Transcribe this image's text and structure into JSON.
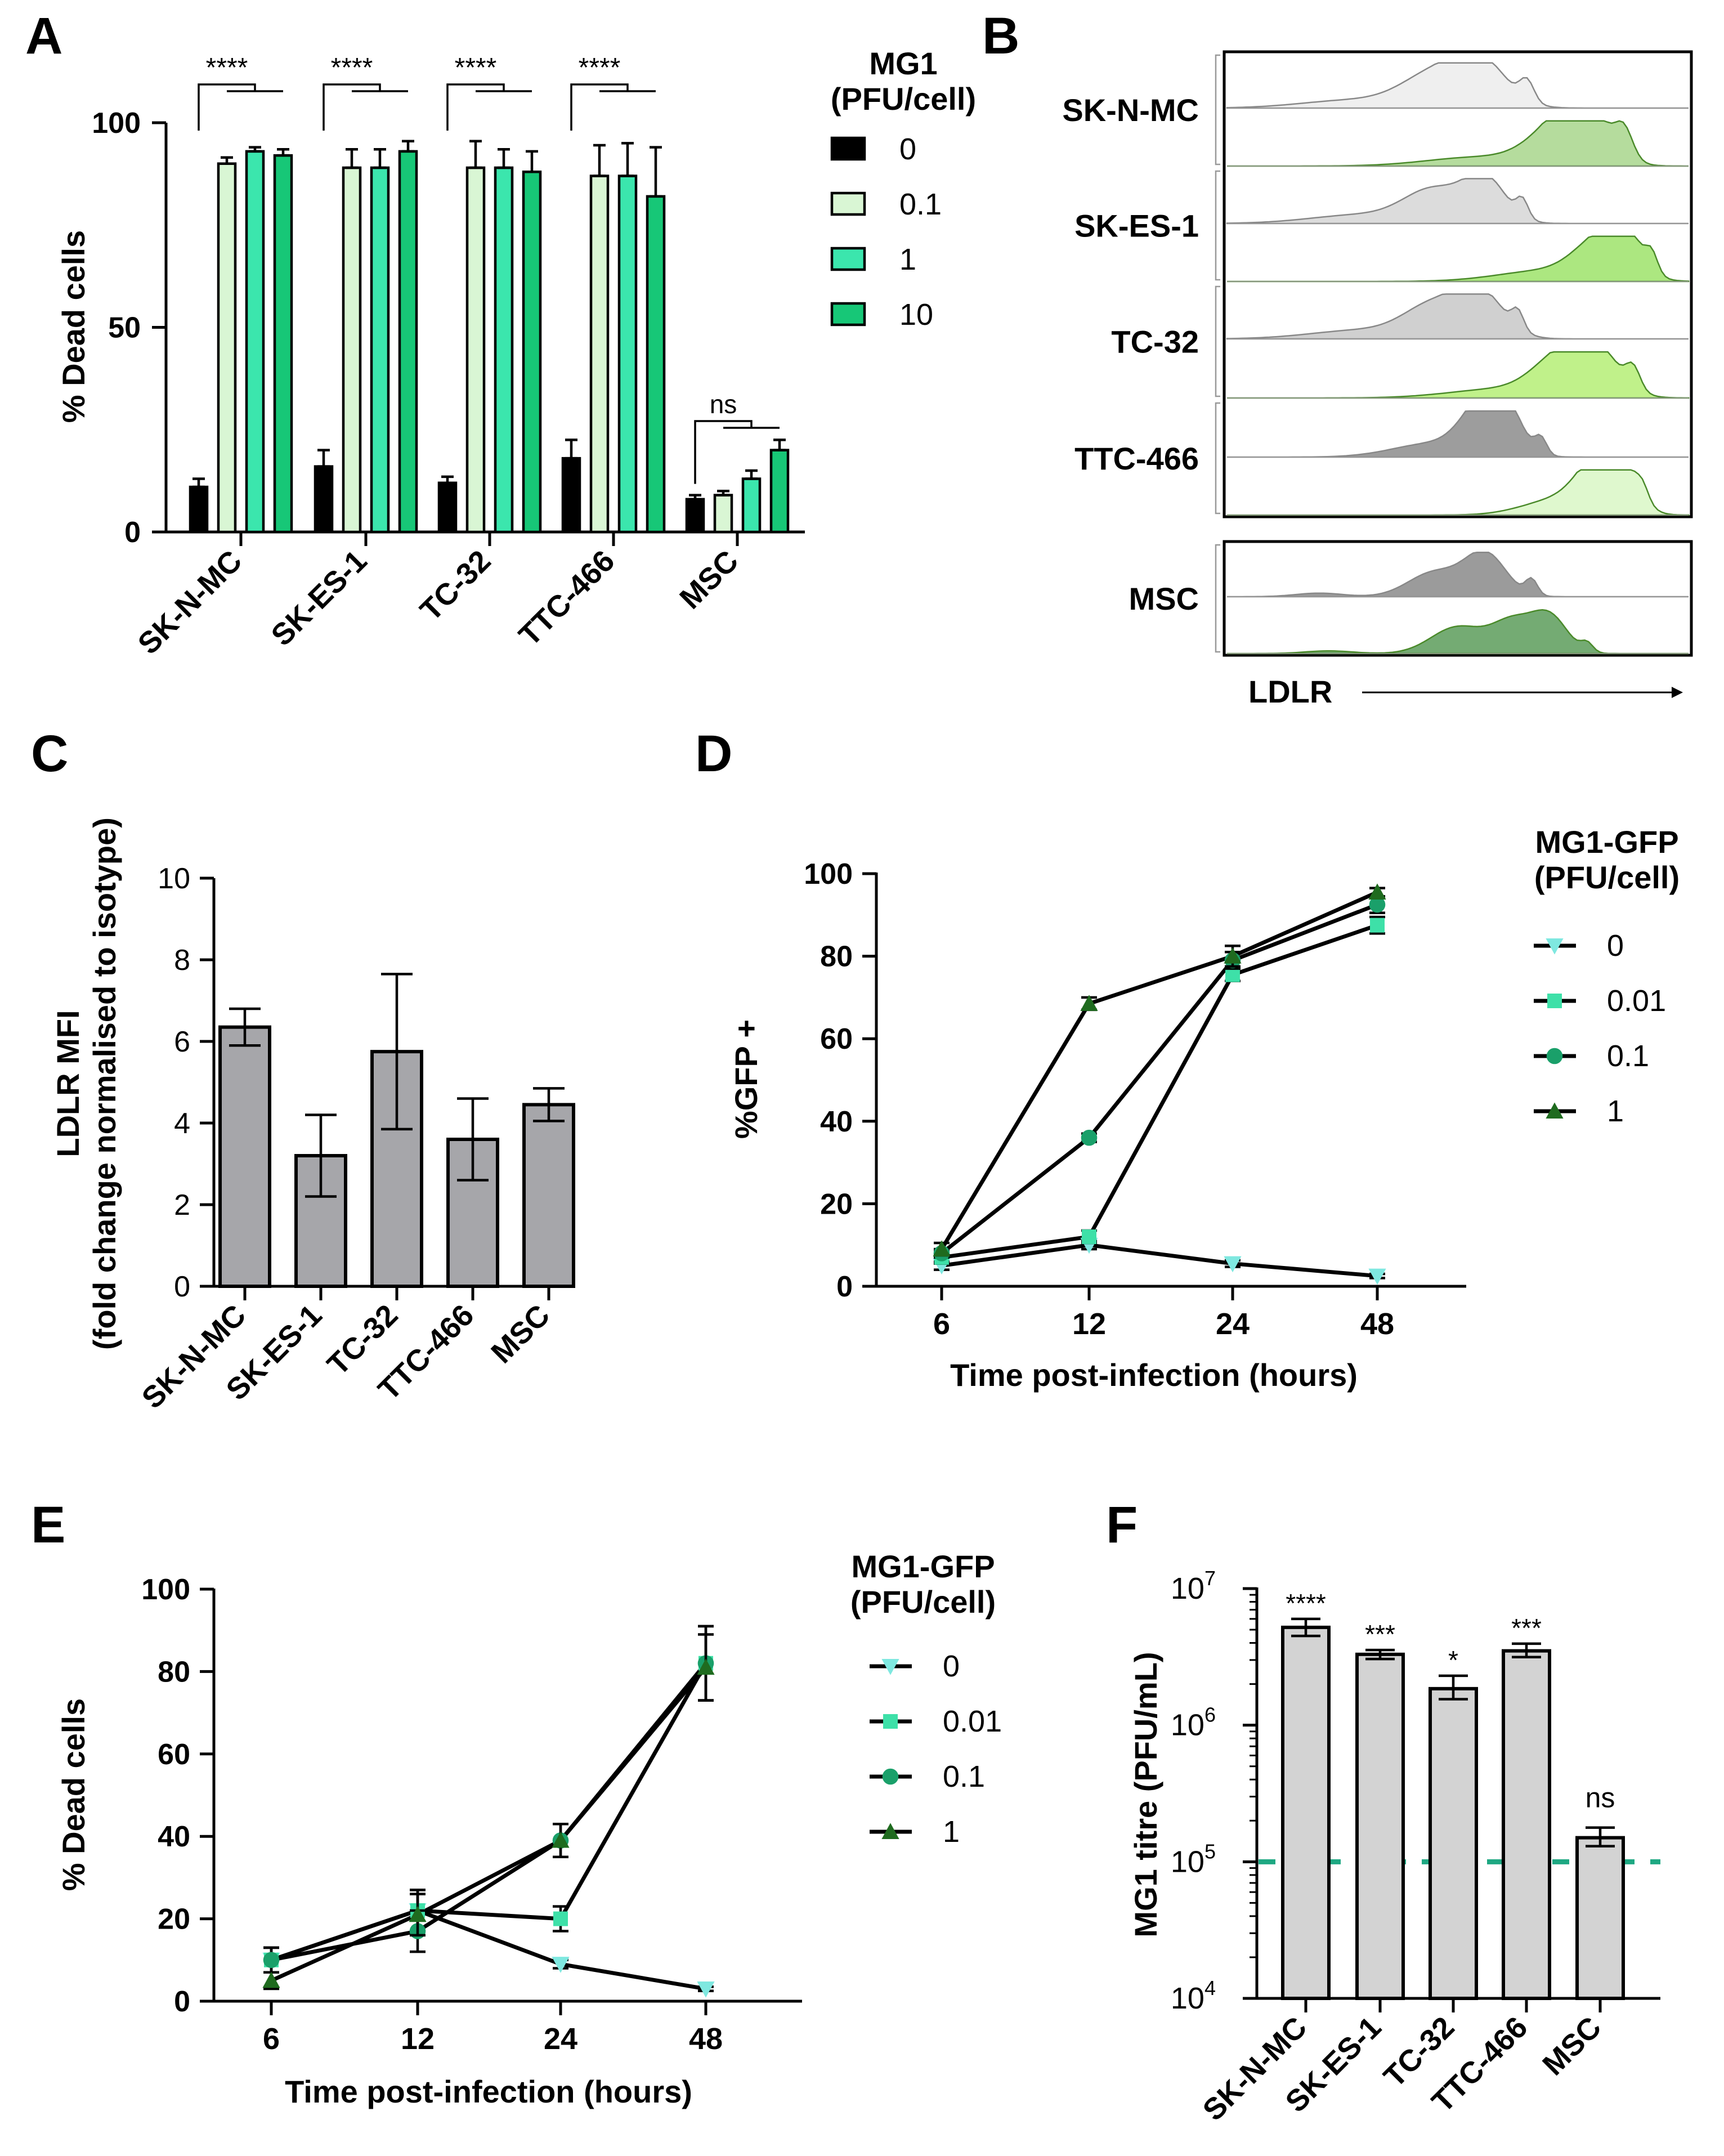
{
  "panels": {
    "A": {
      "letter": "A",
      "chart_data": {
        "type": "bar",
        "categories": [
          "SK-N-MC",
          "SK-ES-1",
          "TC-32",
          "TTC-466",
          "MSC"
        ],
        "ylabel": "% Dead cells",
        "ylim": [
          0,
          100
        ],
        "yticks": [
          "0",
          "50",
          "100"
        ],
        "legend_title": [
          "MG1",
          "(PFU/cell)"
        ],
        "series": [
          {
            "name": "0",
            "values": [
              11,
              16,
              12,
              18,
              8
            ],
            "errors": [
              2,
              4,
              1.5,
              4.5,
              1
            ],
            "fill": "#000000"
          },
          {
            "name": "0.1",
            "values": [
              90,
              89,
              89,
              87,
              9
            ],
            "errors": [
              1.5,
              4.5,
              6.5,
              7.5,
              1
            ],
            "fill": "#d9f6d4"
          },
          {
            "name": "1",
            "values": [
              93,
              89,
              89,
              87,
              13
            ],
            "errors": [
              1,
              4.5,
              4.5,
              8,
              2
            ],
            "fill": "#3be6ad"
          },
          {
            "name": "10",
            "values": [
              92,
              93,
              88,
              82,
              20
            ],
            "errors": [
              1.5,
              2.5,
              5,
              12,
              2.5
            ],
            "fill": "#17c777"
          }
        ],
        "significance": [
          "****",
          "****",
          "****",
          "****",
          "ns"
        ]
      }
    },
    "B": {
      "letter": "B",
      "samples": [
        "SK-N-MC",
        "SK-ES-1",
        "TC-32",
        "TTC-466",
        "MSC"
      ],
      "xlabel": "LDLR",
      "isotype_fill": [
        "#ececec",
        "#d6d6d6",
        "#c8c8c8",
        "#8c8c8c",
        "#8a8a8a"
      ],
      "stain_fill": [
        "#a8d68c",
        "#9de36a",
        "#b5ef76",
        "#d9f7c6",
        "#5c9c5a"
      ]
    },
    "C": {
      "letter": "C",
      "chart_data": {
        "type": "bar",
        "categories": [
          "SK-N-MC",
          "SK-ES-1",
          "TC-32",
          "TTC-466",
          "MSC"
        ],
        "values": [
          6.35,
          3.2,
          5.75,
          3.6,
          4.45
        ],
        "errors": [
          0.45,
          1.0,
          1.9,
          1.0,
          0.4
        ],
        "ylabel": [
          "LDLR MFI",
          "(fold change normalised to isotype)"
        ],
        "ylim": [
          0,
          10
        ],
        "yticks": [
          "0",
          "2",
          "4",
          "6",
          "8",
          "10"
        ],
        "fill": "#a6a6aa"
      }
    },
    "D": {
      "letter": "D",
      "chart_data": {
        "type": "line",
        "x": [
          "6",
          "12",
          "24",
          "48"
        ],
        "xlabel": "Time post-infection (hours)",
        "ylabel": "%GFP +",
        "ylim": [
          0,
          100
        ],
        "yticks": [
          "0",
          "20",
          "40",
          "60",
          "80",
          "100"
        ],
        "legend_title": [
          "MG1-GFP",
          "(PFU/cell)"
        ],
        "series": [
          {
            "name": "0",
            "values": [
              5,
              10,
              5.5,
              2.5
            ],
            "errors": [
              1,
              1,
              0.8,
              0.5
            ],
            "color": "#7fe8e0",
            "marker": "tri-down"
          },
          {
            "name": "0.01",
            "values": [
              7,
              12,
              75.5,
              87.5
            ],
            "errors": [
              1.5,
              1.5,
              1.5,
              2
            ],
            "color": "#3ee0a8",
            "marker": "square"
          },
          {
            "name": "0.1",
            "values": [
              8,
              36,
              79,
              92.5
            ],
            "errors": [
              1,
              1,
              2,
              2
            ],
            "color": "#1aa06a",
            "marker": "circle"
          },
          {
            "name": "1",
            "values": [
              9,
              68.5,
              80,
              95.5
            ],
            "errors": [
              1.5,
              1.5,
              2.5,
              1
            ],
            "color": "#1f6b1f",
            "marker": "tri-up"
          }
        ]
      }
    },
    "E": {
      "letter": "E",
      "chart_data": {
        "type": "line",
        "x": [
          "6",
          "12",
          "24",
          "48"
        ],
        "xlabel": "Time post-infection (hours)",
        "ylabel": "% Dead cells",
        "ylim": [
          0,
          100
        ],
        "yticks": [
          "0",
          "20",
          "40",
          "60",
          "80",
          "100"
        ],
        "legend_title": [
          "MG1-GFP",
          "(PFU/cell)"
        ],
        "series": [
          {
            "name": "0",
            "values": [
              10,
              22,
              9,
              3
            ],
            "errors": [
              3,
              5,
              1,
              0.5
            ],
            "color": "#7fe8e0",
            "marker": "tri-down"
          },
          {
            "name": "0.01",
            "values": [
              10,
              22,
              20,
              82
            ],
            "errors": [
              3,
              5,
              3,
              9
            ],
            "color": "#3ee0a8",
            "marker": "square"
          },
          {
            "name": "0.1",
            "values": [
              10,
              17,
              39,
              82
            ],
            "errors": [
              3,
              5,
              4,
              9
            ],
            "color": "#1aa06a",
            "marker": "circle"
          },
          {
            "name": "1",
            "values": [
              5,
              21,
              39,
              81
            ],
            "errors": [
              2,
              5,
              4,
              8
            ],
            "color": "#1f6b1f",
            "marker": "tri-up"
          }
        ]
      }
    },
    "F": {
      "letter": "F",
      "chart_data": {
        "type": "bar",
        "scale": "log",
        "categories": [
          "SK-N-MC",
          "SK-ES-1",
          "TC-32",
          "TTC-466",
          "MSC"
        ],
        "values": [
          5200000,
          3300000,
          1850000,
          3500000,
          150000
        ],
        "errors_low": [
          4500000,
          3050000,
          1550000,
          3150000,
          130000
        ],
        "errors_high": [
          6000000,
          3550000,
          2300000,
          3950000,
          178000
        ],
        "ylabel": "MG1 titre (PFU/mL)",
        "ylim": [
          10000,
          10000000
        ],
        "ytick_base": "10",
        "ytick_exponents": [
          "4",
          "5",
          "6",
          "7"
        ],
        "threshold": 100000,
        "threshold_color": "#1ea882",
        "fill": "#d3d3d3",
        "significance": [
          "****",
          "***",
          "*",
          "***",
          "ns"
        ]
      }
    }
  }
}
